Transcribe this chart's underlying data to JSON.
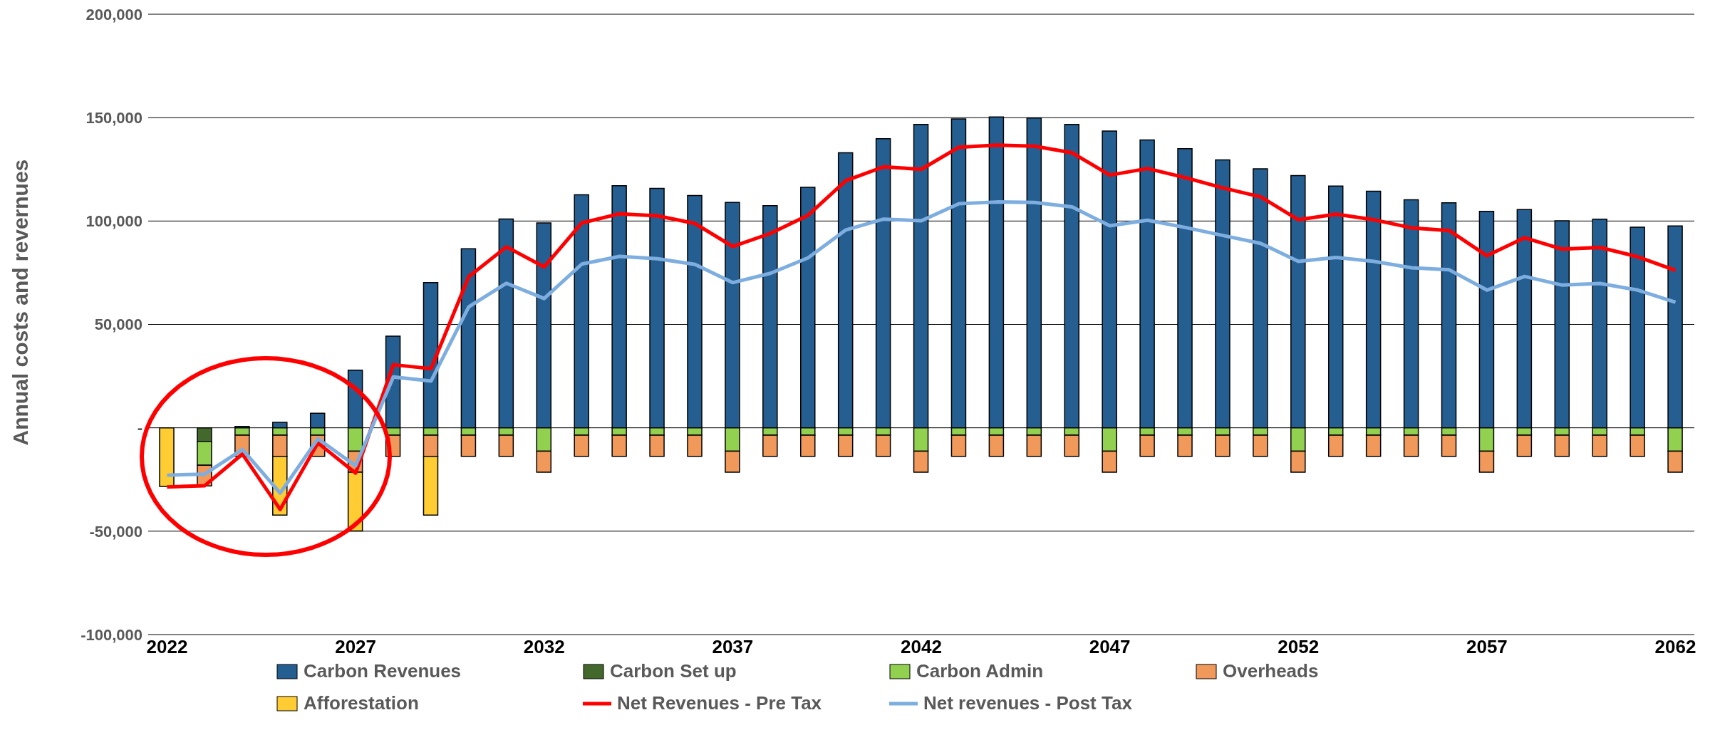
{
  "chart_data": {
    "type": "bar",
    "stacked": true,
    "ylabel": "Annual costs and revernues",
    "categories": [
      "2022",
      null,
      null,
      null,
      null,
      "2027",
      null,
      null,
      null,
      null,
      "2032",
      null,
      null,
      null,
      null,
      "2037",
      null,
      null,
      null,
      null,
      "2042",
      null,
      null,
      null,
      null,
      "2047",
      null,
      null,
      null,
      null,
      "2052",
      null,
      null,
      null,
      null,
      "2057",
      null,
      null,
      null,
      null,
      "2062"
    ],
    "ylim": [
      -100000,
      200000
    ],
    "yticks": [
      {
        "value": -100000,
        "label": "-100,000"
      },
      {
        "value": -50000,
        "label": "-50,000"
      },
      {
        "value": 0,
        "label": "-"
      },
      {
        "value": 50000,
        "label": "50,000"
      },
      {
        "value": 100000,
        "label": "100,000"
      },
      {
        "value": 150000,
        "label": "150,000"
      },
      {
        "value": 200000,
        "label": "200,000"
      }
    ],
    "grid": "y",
    "legend": "bottom",
    "marker": "none",
    "line_style": "solid",
    "series": [
      {
        "name": "Carbon Revenues",
        "color": "#255e91",
        "values": [
          null,
          null,
          700,
          2600,
          7000,
          27900,
          44300,
          70200,
          86600,
          101000,
          99100,
          112700,
          117100,
          115800,
          112300,
          109000,
          107400,
          116300,
          133000,
          139800,
          146700,
          149400,
          150300,
          149800,
          146700,
          143500,
          139200,
          135000,
          129600,
          125300,
          122000,
          116900,
          114400,
          110300,
          108800,
          104700,
          105500,
          100100,
          100900,
          97000,
          97600
        ]
      },
      {
        "name": "Carbon Set up",
        "color": "#43682b",
        "values": [
          null,
          -6600,
          null,
          null,
          null,
          null,
          null,
          null,
          null,
          null,
          null,
          null,
          null,
          null,
          null,
          null,
          null,
          null,
          null,
          null,
          null,
          null,
          null,
          null,
          null,
          null,
          null,
          null,
          null,
          null,
          null,
          null,
          null,
          null,
          null,
          null,
          null,
          null,
          null,
          null,
          null
        ]
      },
      {
        "name": "Carbon Admin",
        "color": "#92d050",
        "values": [
          null,
          -11500,
          -3600,
          -3600,
          -3600,
          -11300,
          -3600,
          -3600,
          -3600,
          -3600,
          -11300,
          -3600,
          -3600,
          -3600,
          -3600,
          -11300,
          -3600,
          -3600,
          -3600,
          -3600,
          -11300,
          -3600,
          -3600,
          -3600,
          -3600,
          -11300,
          -3600,
          -3600,
          -3600,
          -3600,
          -11300,
          -3600,
          -3600,
          -3600,
          -3600,
          -11300,
          -3600,
          -3600,
          -3600,
          -3600,
          -11300
        ]
      },
      {
        "name": "Overheads",
        "color": "#f0995a",
        "values": [
          null,
          -10000,
          -10200,
          -10200,
          -10200,
          -10200,
          -10200,
          -10200,
          -10200,
          -10200,
          -10200,
          -10200,
          -10200,
          -10200,
          -10200,
          -10200,
          -10200,
          -10200,
          -10200,
          -10200,
          -10200,
          -10200,
          -10200,
          -10200,
          -10200,
          -10200,
          -10200,
          -10200,
          -10200,
          -10200,
          -10200,
          -10200,
          -10200,
          -10200,
          -10200,
          -10200,
          -10200,
          -10200,
          -10200,
          -10200,
          -10200
        ]
      },
      {
        "name": "Afforestation",
        "color": "#ffcd33",
        "values": [
          -28400,
          null,
          null,
          -28400,
          null,
          -28400,
          null,
          -28400,
          null,
          null,
          null,
          null,
          null,
          null,
          null,
          null,
          null,
          null,
          null,
          null,
          null,
          null,
          null,
          null,
          null,
          null,
          null,
          null,
          null,
          null,
          null,
          null,
          null,
          null,
          null,
          null,
          null,
          null,
          null,
          null,
          null
        ]
      },
      {
        "name": "Net Revenues - Pre Tax",
        "type": "line",
        "color": "#ff0000",
        "values": [
          -28600,
          -28000,
          -12700,
          -39500,
          -7300,
          -21900,
          30500,
          28600,
          73100,
          87500,
          77800,
          99100,
          103500,
          102500,
          98800,
          87700,
          94000,
          102800,
          119500,
          126200,
          125000,
          135700,
          136700,
          136200,
          133000,
          122200,
          125400,
          121000,
          116000,
          111700,
          100600,
          103300,
          100600,
          96700,
          95400,
          83200,
          91900,
          86400,
          87200,
          82700,
          76100
        ]
      },
      {
        "name": "Net revenues - Post Tax",
        "type": "line",
        "color": "#7eaedf",
        "values": [
          -22900,
          -22400,
          -10500,
          -31600,
          -5300,
          -18400,
          24600,
          22600,
          58500,
          69900,
          62500,
          79200,
          82900,
          81800,
          79000,
          70200,
          74700,
          82200,
          95700,
          100900,
          100100,
          108400,
          109200,
          109000,
          106800,
          97700,
          100400,
          96900,
          93000,
          89200,
          80500,
          82400,
          80500,
          77400,
          76400,
          66600,
          73200,
          69000,
          69800,
          66600,
          60700
        ]
      }
    ]
  }
}
